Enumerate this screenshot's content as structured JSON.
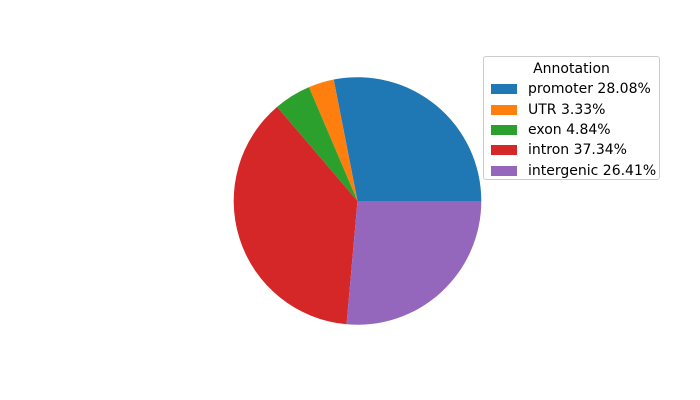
{
  "chart_data": {
    "type": "pie",
    "title": "",
    "legend_title": "Annotation",
    "legend_position": "upper right",
    "start_angle": 0,
    "counterclockwise": true,
    "series": [
      {
        "label": "promoter",
        "value": 28.08,
        "color": "#1f77b4",
        "legend_label": "promoter 28.08%"
      },
      {
        "label": "UTR",
        "value": 3.33,
        "color": "#ff7f0e",
        "legend_label": "UTR 3.33%"
      },
      {
        "label": "exon",
        "value": 4.84,
        "color": "#2ca02c",
        "legend_label": "exon 4.84%"
      },
      {
        "label": "intron",
        "value": 37.34,
        "color": "#d62728",
        "legend_label": "intron 37.34%"
      },
      {
        "label": "intergenic",
        "value": 26.41,
        "color": "#9467bd",
        "legend_label": "intergenic 26.41%"
      }
    ],
    "colors": {
      "background": "#ffffff",
      "legend_border": "#cccccc",
      "text": "#000000"
    }
  }
}
